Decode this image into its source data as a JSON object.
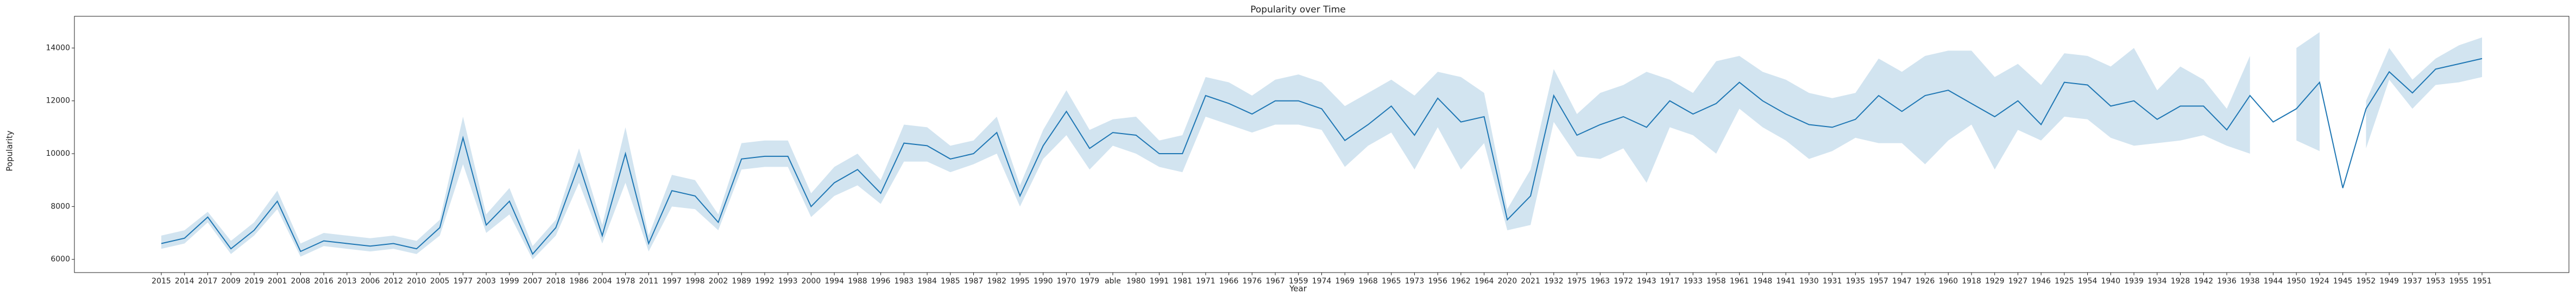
{
  "chart_data": {
    "type": "line",
    "title": "Popularity over Time",
    "x_label": "Year",
    "y_label": "Popularity",
    "categories": [
      "2015",
      "2014",
      "2017",
      "2009",
      "2019",
      "2001",
      "2008",
      "2016",
      "2013",
      "2006",
      "2012",
      "2010",
      "2005",
      "1977",
      "2003",
      "1999",
      "2007",
      "2018",
      "1986",
      "2004",
      "1978",
      "2011",
      "1997",
      "1998",
      "2002",
      "1989",
      "1992",
      "1993",
      "2000",
      "1994",
      "1988",
      "1996",
      "1983",
      "1984",
      "1985",
      "1987",
      "1982",
      "1995",
      "1990",
      "1970",
      "1979",
      "able",
      "1980",
      "1991",
      "1981",
      "1971",
      "1966",
      "1976",
      "1967",
      "1959",
      "1974",
      "1969",
      "1968",
      "1965",
      "1973",
      "1956",
      "1962",
      "1964",
      "2020",
      "2021",
      "1932",
      "1975",
      "1963",
      "1972",
      "1943",
      "1917",
      "1933",
      "1958",
      "1961",
      "1948",
      "1941",
      "1930",
      "1931",
      "1935",
      "1957",
      "1947",
      "1926",
      "1960",
      "1918",
      "1929",
      "1927",
      "1946",
      "1925",
      "1954",
      "1940",
      "1939",
      "1934",
      "1928",
      "1942",
      "1936",
      "1938",
      "1944",
      "1950",
      "1924",
      "1945",
      "1952",
      "1949",
      "1937",
      "1953",
      "1955",
      "1951"
    ],
    "series": [
      {
        "color": "#1f77b4",
        "values": [
          6600,
          6800,
          7600,
          6400,
          7100,
          8200,
          6300,
          6700,
          6600,
          6500,
          6600,
          6400,
          7200,
          10600,
          7300,
          8200,
          6200,
          7200,
          9600,
          6900,
          10000,
          6600,
          8600,
          8400,
          7400,
          9800,
          9900,
          9900,
          8000,
          8900,
          9400,
          8500,
          10400,
          10300,
          9800,
          10000,
          10800,
          8400,
          10300,
          11600,
          10200,
          10800,
          10700,
          10000,
          10000,
          12200,
          11900,
          11500,
          12000,
          12000,
          11700,
          10500,
          11100,
          11800,
          10700,
          12100,
          11200,
          11400,
          7500,
          8400,
          12200,
          10700,
          11100,
          11400,
          11000,
          12000,
          11500,
          11900,
          12700,
          12000,
          11500,
          11100,
          11000,
          11300,
          12200,
          11600,
          12200,
          12400,
          11900,
          11400,
          12000,
          11100,
          12700,
          12600,
          11800,
          12000,
          11300,
          11800,
          11800,
          10900,
          12200,
          11200,
          11700,
          12700,
          8700,
          11700,
          13100,
          12300,
          13200,
          13400,
          13600
        ],
        "ci_lower": [
          6400,
          6600,
          7400,
          6200,
          6900,
          7900,
          6100,
          6500,
          6400,
          6300,
          6400,
          6200,
          6900,
          9600,
          7000,
          7700,
          6000,
          6900,
          8900,
          6600,
          8900,
          6300,
          8000,
          7900,
          7100,
          9400,
          9500,
          9500,
          7600,
          8400,
          8800,
          8100,
          9700,
          9700,
          9300,
          9600,
          10000,
          8000,
          9800,
          10700,
          9400,
          10300,
          10000,
          9500,
          9300,
          11400,
          11100,
          10800,
          11100,
          11100,
          10900,
          9500,
          10300,
          10800,
          9400,
          11000,
          9400,
          10400,
          7100,
          7300,
          11200,
          9900,
          9800,
          10200,
          8900,
          11000,
          10700,
          10000,
          11700,
          11000,
          10500,
          9800,
          10100,
          10600,
          10400,
          10400,
          9600,
          10500,
          11100,
          9400,
          10900,
          10500,
          11400,
          11300,
          10600,
          10300,
          10400,
          10500,
          10700,
          10300,
          10000,
          null,
          10500,
          10100,
          null,
          10200,
          12800,
          11700,
          12600,
          12700,
          12900
        ],
        "ci_upper": [
          6900,
          7100,
          7800,
          6700,
          7400,
          8600,
          6600,
          7000,
          6900,
          6800,
          6900,
          6700,
          7500,
          11400,
          7700,
          8700,
          6500,
          7500,
          10200,
          7300,
          11000,
          6900,
          9200,
          9000,
          7700,
          10400,
          10500,
          10500,
          8500,
          9500,
          10000,
          9000,
          11100,
          11000,
          10300,
          10500,
          11400,
          8800,
          10900,
          12400,
          10900,
          11300,
          11400,
          10500,
          10700,
          12900,
          12700,
          12200,
          12800,
          13000,
          12700,
          11800,
          12300,
          12800,
          12200,
          13100,
          12900,
          12300,
          7900,
          9400,
          13200,
          11500,
          12300,
          12600,
          13100,
          12800,
          12300,
          13500,
          13700,
          13100,
          12800,
          12300,
          12100,
          12300,
          13600,
          13100,
          13700,
          13900,
          13900,
          12900,
          13400,
          12600,
          13800,
          13700,
          13300,
          14000,
          12400,
          13300,
          12800,
          11700,
          13700,
          null,
          14000,
          14600,
          null,
          12000,
          14000,
          12800,
          13600,
          14100,
          14400
        ]
      }
    ],
    "ylim": [
      5500,
      15200
    ],
    "yticks": [
      6000,
      8000,
      10000,
      12000,
      14000
    ],
    "grid": false
  }
}
